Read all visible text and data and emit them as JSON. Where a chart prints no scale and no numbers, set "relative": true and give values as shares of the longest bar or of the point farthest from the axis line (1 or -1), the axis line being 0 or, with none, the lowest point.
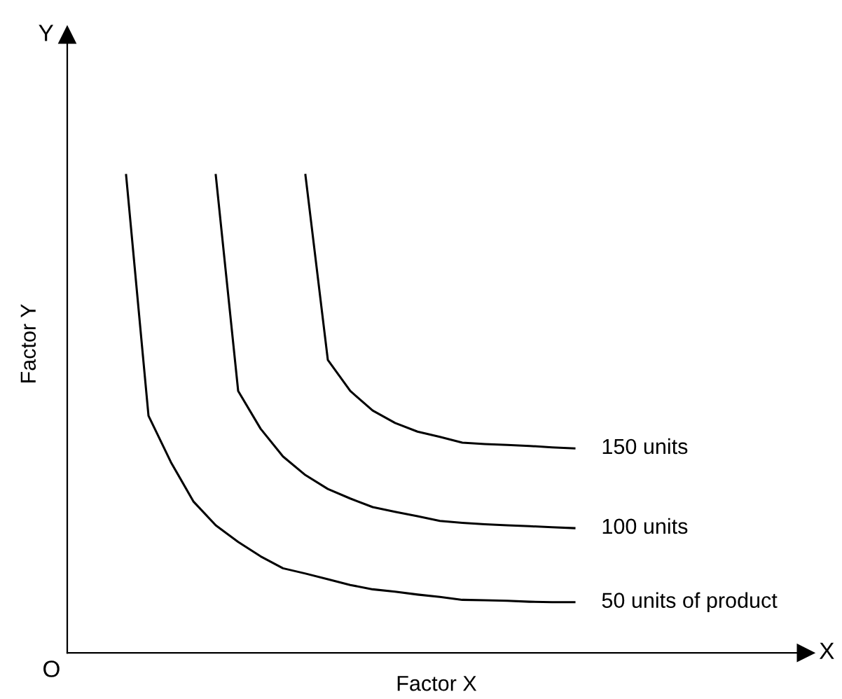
{
  "chart_data": {
    "type": "line",
    "relative": true,
    "xlabel": "Factor X",
    "ylabel": "Factor Y",
    "annotations": [
      "O",
      "X",
      "Y"
    ],
    "legend": false,
    "marker": "none",
    "line_style": "solid",
    "categories": [
      null,
      null,
      null,
      null,
      null,
      null,
      null,
      null,
      null,
      null,
      null,
      null,
      null,
      null,
      null,
      null,
      null,
      null,
      null,
      null,
      null
    ],
    "series": [
      {
        "name": "50 units of product",
        "color": "#000000",
        "values": [
          1,
          0.496,
          0.399,
          0.317,
          0.267,
          0.232,
          0.202,
          0.177,
          0.166,
          0.154,
          0.142,
          0.133,
          0.128,
          0.122,
          0.117,
          0.111,
          0.11,
          0.109,
          0.107,
          0.106,
          0.106
        ]
      },
      {
        "name": "100 units",
        "color": "#000000",
        "values": [
          null,
          null,
          null,
          null,
          1,
          0.548,
          0.469,
          0.411,
          0.372,
          0.343,
          0.323,
          0.305,
          0.295,
          0.286,
          0.276,
          0.272,
          0.269,
          0.267,
          0.265,
          0.263,
          0.261
        ]
      },
      {
        "name": "150 units",
        "color": "#000000",
        "values": [
          null,
          null,
          null,
          null,
          null,
          null,
          null,
          null,
          1,
          0.613,
          0.548,
          0.507,
          0.481,
          0.463,
          0.452,
          0.44,
          0.437,
          0.435,
          0.433,
          0.43,
          0.428
        ]
      }
    ]
  }
}
